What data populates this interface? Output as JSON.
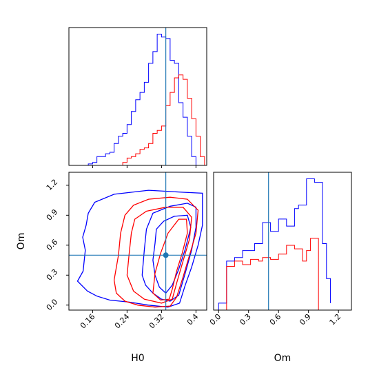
{
  "chart_data": [
    {
      "type": "histogram",
      "panel": "H0 marginal",
      "x_range": [
        0.105,
        0.425
      ],
      "show_y_ticks": false,
      "bin_edges": [
        0.13,
        0.14,
        0.15,
        0.16,
        0.17,
        0.18,
        0.19,
        0.2,
        0.21,
        0.22,
        0.23,
        0.24,
        0.25,
        0.26,
        0.27,
        0.28,
        0.29,
        0.3,
        0.31,
        0.32,
        0.33,
        0.34,
        0.35,
        0.36,
        0.37,
        0.38,
        0.39,
        0.4,
        0.41,
        0.42
      ],
      "series": [
        {
          "color": "#0000ff",
          "values": [
            0.0,
            0.0,
            0.01,
            0.02,
            0.06,
            0.06,
            0.08,
            0.09,
            0.15,
            0.2,
            0.22,
            0.28,
            0.37,
            0.45,
            0.5,
            0.57,
            0.7,
            0.78,
            0.9,
            0.88,
            0.87,
            0.72,
            0.7,
            0.43,
            0.33,
            0.2,
            0.06,
            0.0,
            0.0
          ]
        },
        {
          "color": "#ff0000",
          "values": [
            0.0,
            0.0,
            0.0,
            0.0,
            0.0,
            0.0,
            0.0,
            0.0,
            0.0,
            0.0,
            0.02,
            0.05,
            0.06,
            0.08,
            0.11,
            0.12,
            0.15,
            0.22,
            0.24,
            0.27,
            0.41,
            0.5,
            0.6,
            0.62,
            0.59,
            0.46,
            0.32,
            0.2,
            0.06
          ]
        }
      ],
      "truth_line": 0.33,
      "truth_color": "#1f77b4"
    },
    {
      "type": "contour",
      "panel": "H0 vs Om joint",
      "x_range": [
        0.105,
        0.425
      ],
      "y_range": [
        -0.05,
        1.33
      ],
      "xlabel": "H0",
      "ylabel": "Om",
      "x_ticks": [
        0.16,
        0.24,
        0.32,
        0.4
      ],
      "y_ticks": [
        0.0,
        0.3,
        0.6,
        0.9,
        1.2
      ],
      "series": [
        {
          "color": "#0000ff",
          "levels": [
            [
              [
                0.125,
                0.24
              ],
              [
                0.138,
                0.34
              ],
              [
                0.143,
                0.55
              ],
              [
                0.137,
                0.68
              ],
              [
                0.145,
                0.8
              ],
              [
                0.15,
                0.92
              ],
              [
                0.165,
                1.03
              ],
              [
                0.21,
                1.11
              ],
              [
                0.29,
                1.15
              ],
              [
                0.37,
                1.13
              ],
              [
                0.415,
                1.12
              ],
              [
                0.415,
                0.8
              ],
              [
                0.405,
                0.6
              ],
              [
                0.39,
                0.38
              ],
              [
                0.375,
                0.2
              ],
              [
                0.362,
                0.02
              ],
              [
                0.335,
                -0.02
              ],
              [
                0.29,
                0.0
              ],
              [
                0.245,
                0.03
              ],
              [
                0.2,
                0.05
              ],
              [
                0.17,
                0.09
              ],
              [
                0.148,
                0.14
              ]
            ],
            [
              [
                0.275,
                0.3
              ],
              [
                0.28,
                0.55
              ],
              [
                0.285,
                0.76
              ],
              [
                0.3,
                0.92
              ],
              [
                0.34,
                0.99
              ],
              [
                0.38,
                1.02
              ],
              [
                0.4,
                0.98
              ],
              [
                0.4,
                0.78
              ],
              [
                0.39,
                0.55
              ],
              [
                0.375,
                0.32
              ],
              [
                0.36,
                0.1
              ],
              [
                0.34,
                0.04
              ],
              [
                0.32,
                0.06
              ],
              [
                0.3,
                0.12
              ],
              [
                0.283,
                0.2
              ]
            ],
            [
              [
                0.3,
                0.45
              ],
              [
                0.305,
                0.62
              ],
              [
                0.308,
                0.76
              ],
              [
                0.325,
                0.84
              ],
              [
                0.35,
                0.89
              ],
              [
                0.38,
                0.9
              ],
              [
                0.388,
                0.78
              ],
              [
                0.375,
                0.56
              ],
              [
                0.36,
                0.36
              ],
              [
                0.345,
                0.2
              ],
              [
                0.33,
                0.12
              ],
              [
                0.315,
                0.18
              ],
              [
                0.305,
                0.3
              ]
            ]
          ]
        },
        {
          "color": "#ff0000",
          "levels": [
            [
              [
                0.21,
                0.25
              ],
              [
                0.22,
                0.5
              ],
              [
                0.225,
                0.72
              ],
              [
                0.235,
                0.9
              ],
              [
                0.255,
                1.0
              ],
              [
                0.29,
                1.06
              ],
              [
                0.34,
                1.08
              ],
              [
                0.38,
                1.06
              ],
              [
                0.405,
                0.95
              ],
              [
                0.4,
                0.72
              ],
              [
                0.385,
                0.5
              ],
              [
                0.37,
                0.28
              ],
              [
                0.355,
                0.08
              ],
              [
                0.34,
                -0.01
              ],
              [
                0.305,
                -0.02
              ],
              [
                0.265,
                0.0
              ],
              [
                0.235,
                0.04
              ],
              [
                0.215,
                0.12
              ]
            ],
            [
              [
                0.24,
                0.3
              ],
              [
                0.245,
                0.52
              ],
              [
                0.25,
                0.72
              ],
              [
                0.258,
                0.86
              ],
              [
                0.285,
                0.94
              ],
              [
                0.33,
                0.98
              ],
              [
                0.37,
                0.98
              ],
              [
                0.39,
                0.88
              ],
              [
                0.385,
                0.66
              ],
              [
                0.37,
                0.44
              ],
              [
                0.355,
                0.22
              ],
              [
                0.345,
                0.06
              ],
              [
                0.32,
                0.02
              ],
              [
                0.28,
                0.06
              ],
              [
                0.255,
                0.14
              ]
            ],
            [
              [
                0.3,
                0.12
              ],
              [
                0.305,
                0.32
              ],
              [
                0.318,
                0.52
              ],
              [
                0.335,
                0.72
              ],
              [
                0.36,
                0.86
              ],
              [
                0.378,
                0.86
              ],
              [
                0.38,
                0.72
              ],
              [
                0.368,
                0.52
              ],
              [
                0.355,
                0.34
              ],
              [
                0.345,
                0.16
              ],
              [
                0.338,
                0.06
              ],
              [
                0.318,
                0.05
              ]
            ]
          ]
        }
      ],
      "truth_point": [
        0.33,
        0.5
      ],
      "truth_color": "#1f77b4"
    },
    {
      "type": "histogram",
      "panel": "Om marginal",
      "x_range": [
        -0.05,
        1.33
      ],
      "xlabel": "Om",
      "x_ticks": [
        0.0,
        0.3,
        0.6,
        0.9,
        1.2
      ],
      "show_y_ticks": false,
      "bin_edges": [
        0.0,
        0.04,
        0.08,
        0.12,
        0.16,
        0.2,
        0.24,
        0.28,
        0.32,
        0.36,
        0.4,
        0.44,
        0.48,
        0.52,
        0.56,
        0.6,
        0.64,
        0.68,
        0.72,
        0.76,
        0.8,
        0.84,
        0.88,
        0.92,
        0.96,
        1.0,
        1.04,
        1.08,
        1.12
      ],
      "series": [
        {
          "color": "#0000ff",
          "values": [
            0.04,
            0.04,
            0.28,
            0.28,
            0.3,
            0.3,
            0.34,
            0.34,
            0.34,
            0.38,
            0.38,
            0.5,
            0.5,
            0.45,
            0.45,
            0.52,
            0.52,
            0.48,
            0.48,
            0.58,
            0.6,
            0.6,
            0.75,
            0.75,
            0.73,
            0.73,
            0.38,
            0.18,
            0.04
          ]
        },
        {
          "color": "#ff0000",
          "values": [
            0.0,
            0.0,
            0.25,
            0.25,
            0.28,
            0.28,
            0.26,
            0.26,
            0.29,
            0.29,
            0.28,
            0.3,
            0.3,
            0.29,
            0.29,
            0.32,
            0.32,
            0.37,
            0.37,
            0.35,
            0.35,
            0.28,
            0.34,
            0.41,
            0.41,
            0.0,
            0.0,
            0.0,
            0.0
          ]
        }
      ],
      "truth_line": 0.5,
      "truth_color": "#1f77b4"
    }
  ]
}
